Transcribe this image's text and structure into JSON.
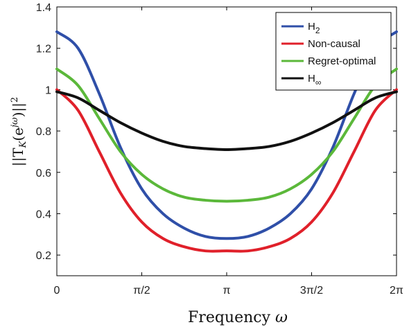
{
  "chart_data": {
    "type": "line",
    "xlabel_text": "Frequency ",
    "xlabel_symbol": "ω",
    "ylabel": {
      "open": "||T",
      "sub": "K",
      "mid": "(e",
      "sup": "jω",
      "close": ")||",
      "power": "2"
    },
    "xlim": [
      0,
      6.283185307
    ],
    "ylim": [
      0.1,
      1.4
    ],
    "x_ticks": [
      {
        "value": 0,
        "label": "0"
      },
      {
        "value": 1.570796327,
        "label": "π/2"
      },
      {
        "value": 3.141592654,
        "label": "π"
      },
      {
        "value": 4.71238898,
        "label": "3π/2"
      },
      {
        "value": 6.283185307,
        "label": "2π"
      }
    ],
    "y_ticks": [
      {
        "value": 0.2,
        "label": "0.2"
      },
      {
        "value": 0.4,
        "label": "0.4"
      },
      {
        "value": 0.6,
        "label": "0.6"
      },
      {
        "value": 0.8,
        "label": "0.8"
      },
      {
        "value": 1.0,
        "label": "1"
      },
      {
        "value": 1.2,
        "label": "1.2"
      },
      {
        "value": 1.4,
        "label": "1.4"
      }
    ],
    "grid": false,
    "legend_position": "top-right",
    "x": [
      0,
      0.3927,
      0.7854,
      1.1781,
      1.5708,
      1.9635,
      2.3562,
      2.7489,
      3.1416,
      3.5343,
      3.927,
      4.3197,
      4.7124,
      5.1051,
      5.4978,
      5.8905,
      6.2832
    ],
    "series": [
      {
        "name": "H",
        "sub": "2",
        "color": "#2f4fa8",
        "values": [
          1.28,
          1.2,
          0.98,
          0.72,
          0.52,
          0.4,
          0.33,
          0.29,
          0.28,
          0.29,
          0.33,
          0.4,
          0.52,
          0.72,
          0.98,
          1.2,
          1.28
        ]
      },
      {
        "name": "Non-causal",
        "sub": "",
        "color": "#e0202a",
        "values": [
          1.0,
          0.9,
          0.7,
          0.5,
          0.36,
          0.28,
          0.24,
          0.22,
          0.22,
          0.22,
          0.24,
          0.28,
          0.36,
          0.5,
          0.7,
          0.9,
          1.0
        ]
      },
      {
        "name": "Regret-optimal",
        "sub": "",
        "color": "#5bb83a",
        "values": [
          1.1,
          1.02,
          0.86,
          0.7,
          0.59,
          0.52,
          0.48,
          0.465,
          0.46,
          0.465,
          0.48,
          0.52,
          0.59,
          0.7,
          0.86,
          1.02,
          1.1
        ]
      },
      {
        "name": "H",
        "sub": "∞",
        "color": "#111111",
        "values": [
          0.99,
          0.96,
          0.9,
          0.84,
          0.79,
          0.75,
          0.725,
          0.715,
          0.71,
          0.715,
          0.725,
          0.75,
          0.79,
          0.84,
          0.9,
          0.96,
          0.99
        ]
      }
    ]
  }
}
